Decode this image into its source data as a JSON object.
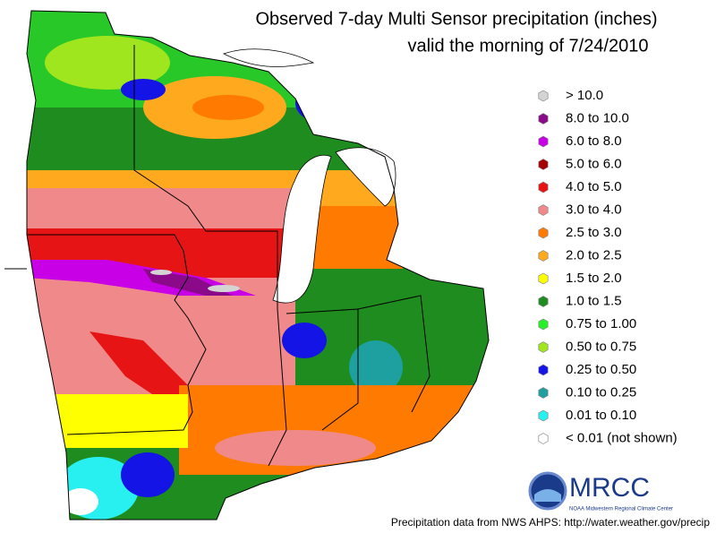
{
  "title": [
    "Observed 7-day Multi Sensor precipitation (inches)",
    "valid the morning of 7/24/2010"
  ],
  "legend": [
    {
      "label": "> 10.0",
      "color": "#d4d4d4"
    },
    {
      "label": "8.0 to 10.0",
      "color": "#8a0a8a"
    },
    {
      "label": "6.0 to 8.0",
      "color": "#c800e6"
    },
    {
      "label": "5.0 to 6.0",
      "color": "#a50000"
    },
    {
      "label": "4.0 to 5.0",
      "color": "#e61414"
    },
    {
      "label": "3.0 to 4.0",
      "color": "#f08a8a"
    },
    {
      "label": "2.5 to 3.0",
      "color": "#ff7a00"
    },
    {
      "label": "2.0 to 2.5",
      "color": "#ffaa1e"
    },
    {
      "label": "1.5 to 2.0",
      "color": "#ffff00"
    },
    {
      "label": "1.0 to 1.5",
      "color": "#1e8c1e"
    },
    {
      "label": "0.75 to 1.00",
      "color": "#28f028"
    },
    {
      "label": "0.50 to 0.75",
      "color": "#a0e61e"
    },
    {
      "label": "0.25 to 0.50",
      "color": "#1414e6"
    },
    {
      "label": "0.10 to 0.25",
      "color": "#1ea0a0"
    },
    {
      "label": "0.01 to 0.10",
      "color": "#28f0f0"
    },
    {
      "label": "< 0.01 (not shown)",
      "color": "#ffffff"
    }
  ],
  "logo": {
    "text": "MRCC",
    "subtitle": "NOAA Midwestern Regional Climate Center"
  },
  "footer": "Precipitation data from NWS AHPS:  http://water.weather.gov/precip"
}
